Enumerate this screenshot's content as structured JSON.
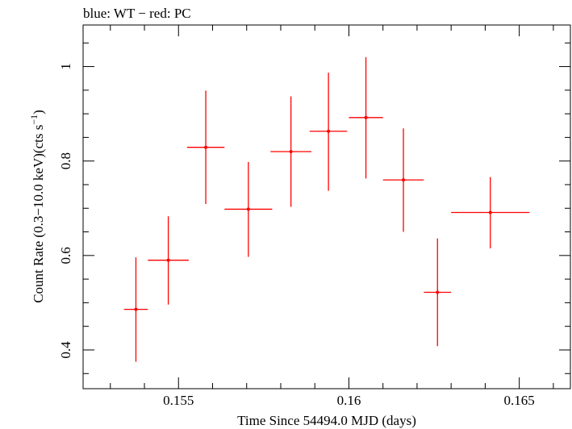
{
  "chart_data": {
    "type": "scatter",
    "title": "blue: WT − red: PC",
    "xlabel": "Time Since 54494.0 MJD (days)",
    "ylabel_main": "Count Rate (0.3−10.0 keV)(cts s",
    "ylabel_sup": "−1",
    "ylabel_close": ")",
    "xlim": [
      0.1522,
      0.1665
    ],
    "ylim": [
      0.318,
      1.088
    ],
    "xticks": [
      0.155,
      0.16,
      0.165
    ],
    "xtick_labels": [
      "0.155",
      "0.16",
      "0.165"
    ],
    "yticks": [
      0.4,
      0.6,
      0.8,
      1.0
    ],
    "ytick_labels": [
      "0.4",
      "0.6",
      "0.8",
      "1"
    ],
    "grid": false,
    "series": [
      {
        "color": "#ff0000",
        "points": [
          {
            "x": 0.15375,
            "y": 0.486,
            "xerr": 0.00035,
            "ylo": 0.375,
            "yhi": 0.596
          },
          {
            "x": 0.1547,
            "y": 0.59,
            "xerr": 0.0006,
            "ylo": 0.496,
            "yhi": 0.683
          },
          {
            "x": 0.1558,
            "y": 0.829,
            "xerr": 0.00055,
            "ylo": 0.709,
            "yhi": 0.949
          },
          {
            "x": 0.15705,
            "y": 0.698,
            "xerr": 0.0007,
            "ylo": 0.597,
            "yhi": 0.798
          },
          {
            "x": 0.1583,
            "y": 0.82,
            "xerr": 0.0006,
            "ylo": 0.703,
            "yhi": 0.937
          },
          {
            "x": 0.1594,
            "y": 0.863,
            "xerr": 0.00055,
            "ylo": 0.737,
            "yhi": 0.987
          },
          {
            "x": 0.1605,
            "y": 0.892,
            "xerr": 0.0005,
            "ylo": 0.763,
            "yhi": 1.02
          },
          {
            "x": 0.1616,
            "y": 0.76,
            "xerr": 0.0006,
            "ylo": 0.65,
            "yhi": 0.869
          },
          {
            "x": 0.1626,
            "y": 0.522,
            "xerr": 0.0004,
            "ylo": 0.408,
            "yhi": 0.636
          },
          {
            "x": 0.16415,
            "y": 0.691,
            "xerr": 0.00115,
            "ylo": 0.615,
            "yhi": 0.766
          }
        ]
      }
    ]
  }
}
